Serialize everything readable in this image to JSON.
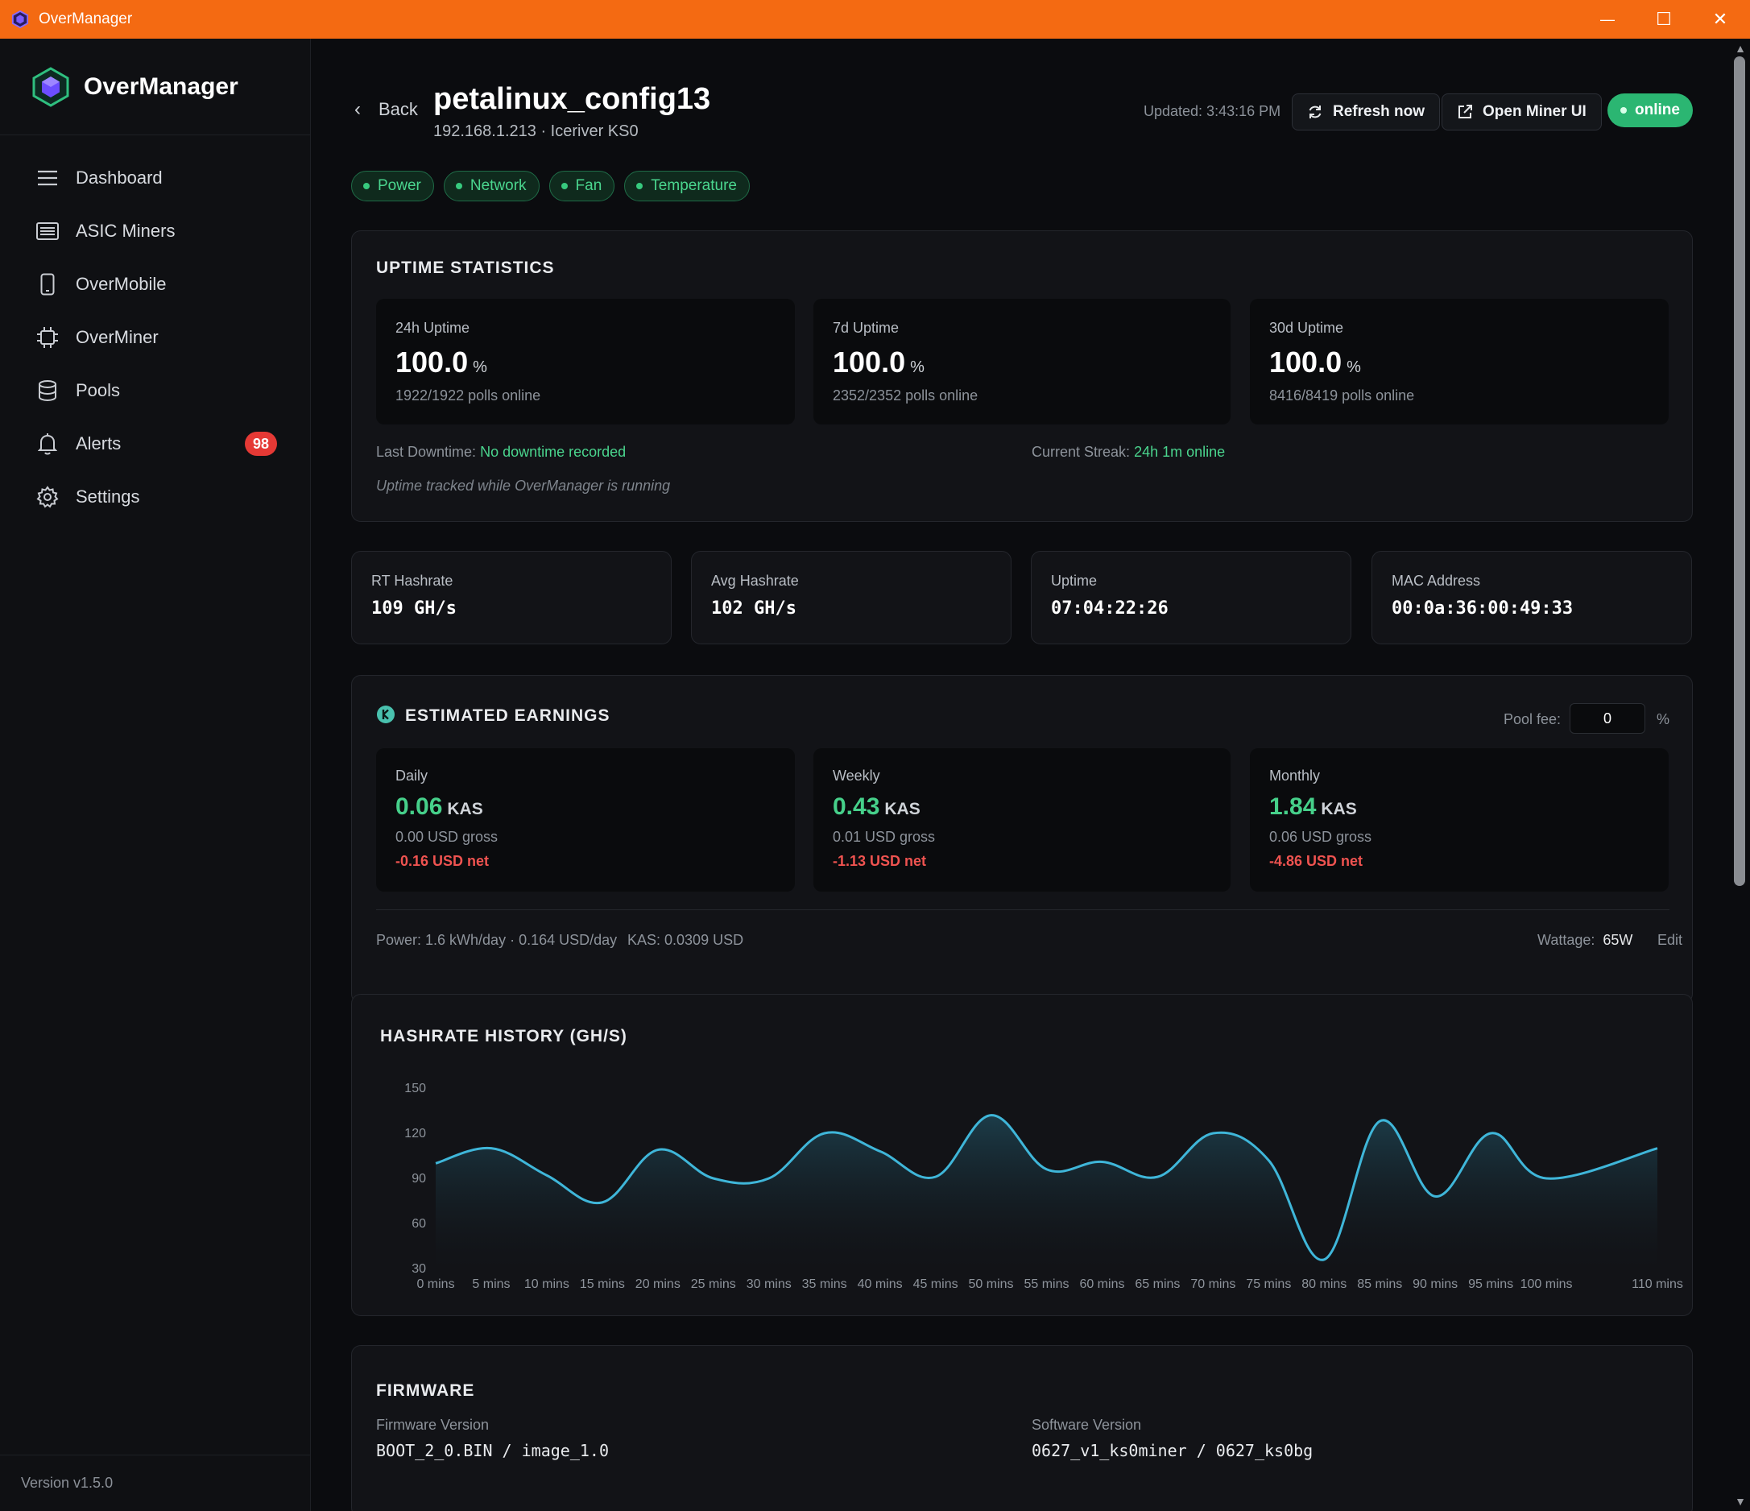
{
  "window": {
    "title": "OverManager",
    "controls": {
      "minimize": "—",
      "maximize": "☐",
      "close": "✕"
    }
  },
  "sidebar": {
    "brand": "OverManager",
    "items": [
      {
        "label": "Dashboard",
        "icon": "menu-icon"
      },
      {
        "label": "ASIC Miners",
        "icon": "server-icon"
      },
      {
        "label": "OverMobile",
        "icon": "phone-icon"
      },
      {
        "label": "OverMiner",
        "icon": "chip-icon"
      },
      {
        "label": "Pools",
        "icon": "database-icon"
      },
      {
        "label": "Alerts",
        "icon": "bell-icon",
        "badge": "98"
      },
      {
        "label": "Settings",
        "icon": "gear-icon"
      }
    ],
    "version": "Version v1.5.0"
  },
  "header": {
    "back": "Back",
    "title": "petalinux_config13",
    "subtitle": "192.168.1.213 · Iceriver KS0",
    "updated": "Updated: 3:43:16 PM",
    "refresh": "Refresh now",
    "open_ui": "Open Miner UI",
    "status": "online"
  },
  "tags": [
    "Power",
    "Network",
    "Fan",
    "Temperature"
  ],
  "uptime": {
    "title": "UPTIME STATISTICS",
    "stats": [
      {
        "label": "24h Uptime",
        "value": "100.0",
        "unit": "%",
        "sub": "1922/1922 polls online"
      },
      {
        "label": "7d Uptime",
        "value": "100.0",
        "unit": "%",
        "sub": "2352/2352 polls online"
      },
      {
        "label": "30d Uptime",
        "value": "100.0",
        "unit": "%",
        "sub": "8416/8419 polls online"
      }
    ],
    "last_downtime_label": "Last Downtime:",
    "last_downtime_value": "No downtime recorded",
    "streak_label": "Current Streak:",
    "streak_value": "24h 1m online",
    "note": "Uptime tracked while OverManager is running"
  },
  "metrics": [
    {
      "label": "RT Hashrate",
      "value": "109 GH/s"
    },
    {
      "label": "Avg Hashrate",
      "value": "102 GH/s"
    },
    {
      "label": "Uptime",
      "value": "07:04:22:26"
    },
    {
      "label": "MAC Address",
      "value": "00:0a:36:00:49:33"
    }
  ],
  "earnings": {
    "title": "ESTIMATED EARNINGS",
    "pool_fee_label": "Pool fee:",
    "pool_fee_value": "0",
    "pool_fee_unit": "%",
    "periods": [
      {
        "label": "Daily",
        "value": "0.06",
        "unit": "KAS",
        "gross": "0.00 USD gross",
        "net": "-0.16 USD net"
      },
      {
        "label": "Weekly",
        "value": "0.43",
        "unit": "KAS",
        "gross": "0.01 USD gross",
        "net": "-1.13 USD net"
      },
      {
        "label": "Monthly",
        "value": "1.84",
        "unit": "KAS",
        "gross": "0.06 USD gross",
        "net": "-4.86 USD net"
      }
    ],
    "power_note": "Power: 1.6 kWh/day · 0.164 USD/day",
    "kas_price": "KAS: 0.0309 USD",
    "wattage_label": "Wattage:",
    "wattage_value": "65W",
    "edit": "Edit"
  },
  "chart_data": {
    "type": "area",
    "title": "HASHRATE HISTORY (GH/S)",
    "x": [
      0,
      5,
      10,
      15,
      20,
      25,
      30,
      35,
      40,
      45,
      50,
      55,
      60,
      65,
      70,
      75,
      80,
      85,
      90,
      95,
      100,
      110
    ],
    "x_tick_labels": [
      "0 mins",
      "5 mins",
      "10 mins",
      "15 mins",
      "20 mins",
      "25 mins",
      "30 mins",
      "35 mins",
      "40 mins",
      "45 mins",
      "50 mins",
      "55 mins",
      "60 mins",
      "65 mins",
      "70 mins",
      "75 mins",
      "80 mins",
      "85 mins",
      "90 mins",
      "95 mins",
      "100 mins",
      "110 mins"
    ],
    "series": [
      {
        "values": [
          100,
          110,
          92,
          74,
          109,
          90,
          90,
          120,
          108,
          91,
          132,
          96,
          101,
          91,
          120,
          102,
          36,
          128,
          78,
          120,
          90,
          110
        ]
      }
    ],
    "yticks": [
      30,
      60,
      90,
      120,
      150
    ],
    "ylim": [
      30,
      150
    ],
    "xlim": [
      0,
      110
    ],
    "color": "#3fb6d9"
  },
  "firmware": {
    "title": "FIRMWARE",
    "firmware_label": "Firmware Version",
    "firmware_value": "BOOT_2_0.BIN / image_1.0",
    "software_label": "Software Version",
    "software_value": "0627_v1_ks0miner / 0627_ks0bg"
  }
}
